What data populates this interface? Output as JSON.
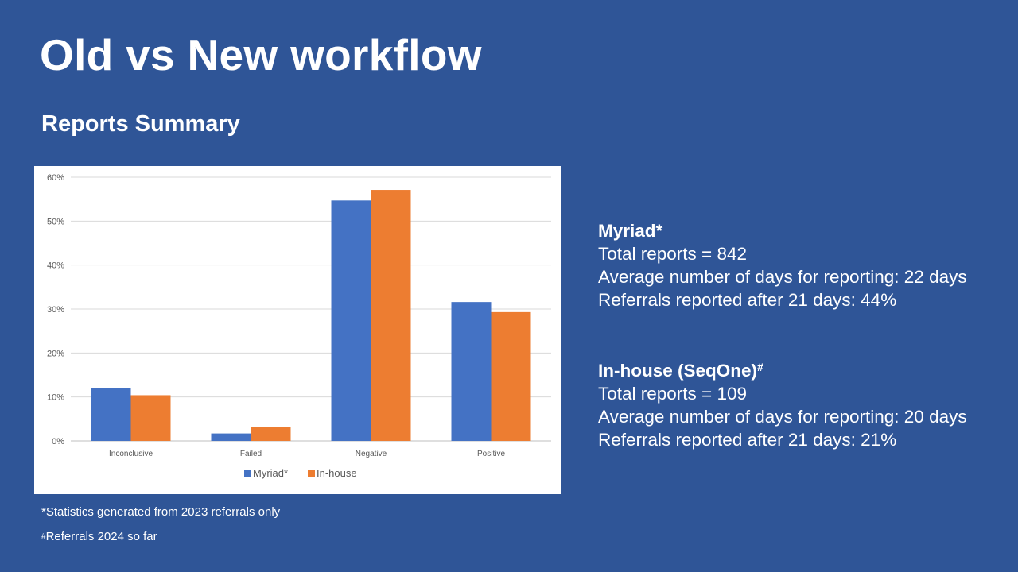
{
  "slide": {
    "title": "Old vs New workflow",
    "subtitle": "Reports Summary"
  },
  "chart_data": {
    "type": "bar",
    "categories": [
      "Inconclusive",
      "Failed",
      "Negative",
      "Positive"
    ],
    "series": [
      {
        "name": "Myriad*",
        "values": [
          12,
          1.7,
          54.7,
          31.6
        ],
        "color": "#4472c4"
      },
      {
        "name": "In-house",
        "values": [
          10.4,
          3.2,
          57.1,
          29.3
        ],
        "color": "#ed7d31"
      }
    ],
    "yticks": [
      "0%",
      "10%",
      "20%",
      "30%",
      "40%",
      "50%",
      "60%"
    ],
    "ylim": [
      0,
      60
    ],
    "grid": true,
    "legend_position": "bottom"
  },
  "stats": {
    "myriad": {
      "heading": "Myriad*",
      "total": "Total reports = 842",
      "average": "Average number of days for reporting: 22 days",
      "late": "Referrals reported after 21 days: 44%"
    },
    "inhouse": {
      "heading": "In-house (SeqOne)",
      "heading_mark": "#",
      "total": "Total reports = 109",
      "average": "Average number of days for reporting: 20 days",
      "late": "Referrals reported after 21 days: 21%"
    }
  },
  "footnotes": {
    "first": "*Statistics generated from 2023 referrals only",
    "second_mark": "#",
    "second": "Referrals 2024 so far"
  }
}
